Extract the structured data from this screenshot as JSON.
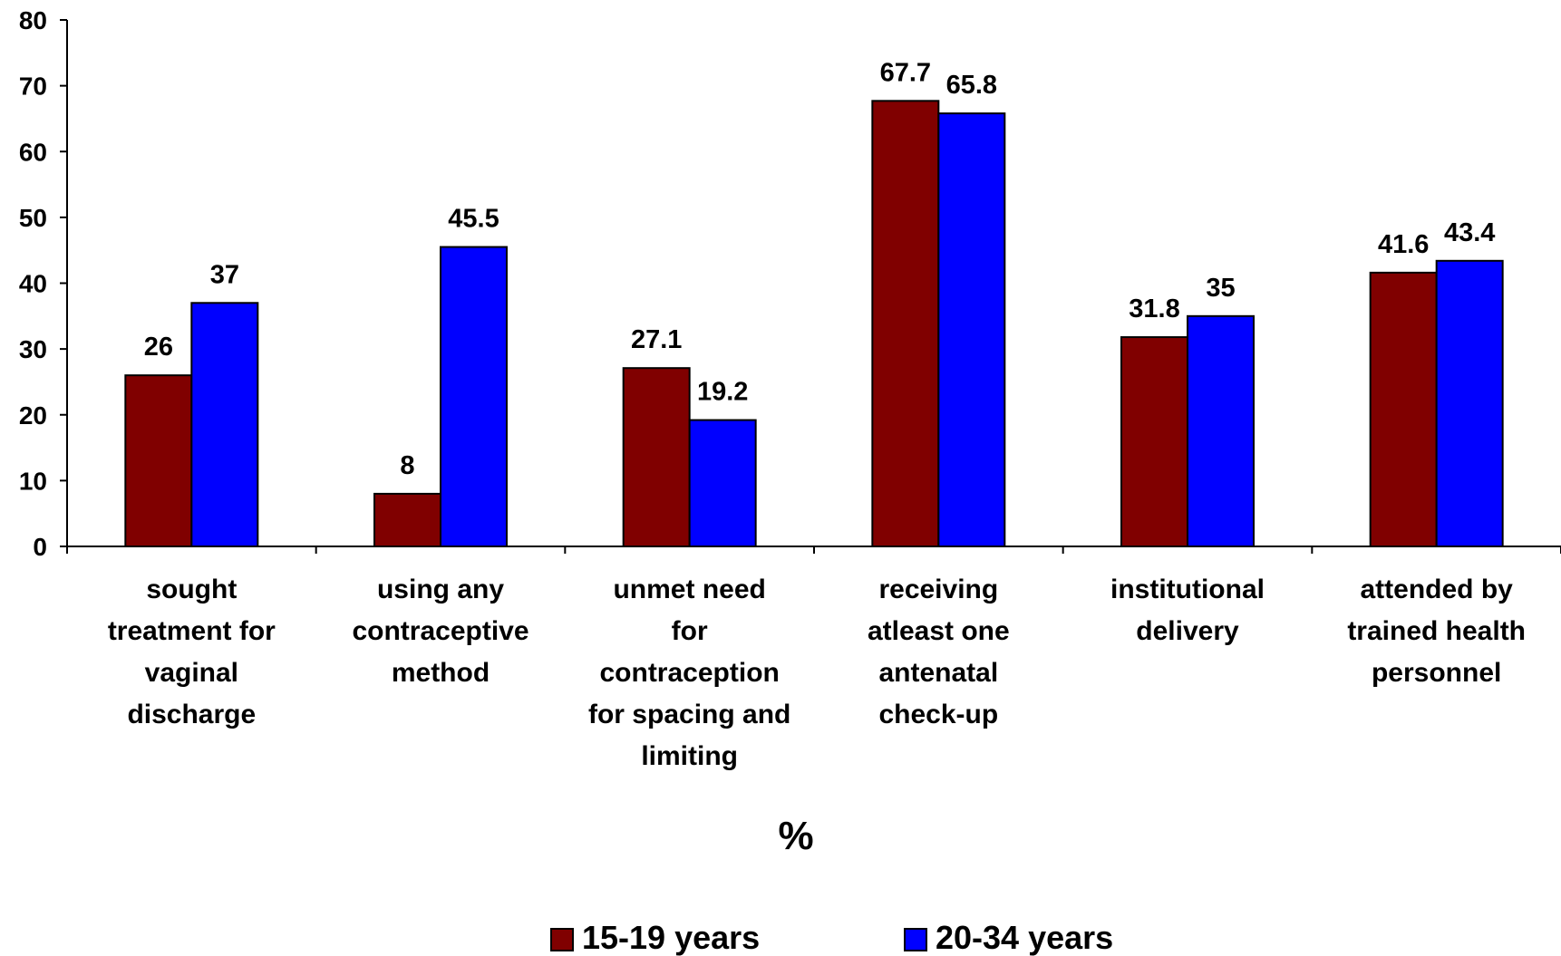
{
  "chart_data": {
    "type": "bar",
    "categories": [
      [
        "sought",
        "treatment for",
        "vaginal",
        "discharge"
      ],
      [
        "using any",
        "contraceptive",
        "method"
      ],
      [
        "unmet need",
        "for",
        "contraception",
        "for spacing and",
        "limiting"
      ],
      [
        "receiving",
        "atleast one",
        "antenatal",
        "check-up"
      ],
      [
        "institutional",
        "delivery"
      ],
      [
        "attended by",
        "trained health",
        "personnel"
      ]
    ],
    "series": [
      {
        "name": "15-19 years",
        "color": "#800000",
        "values": [
          26,
          8,
          27.1,
          67.7,
          31.8,
          41.6
        ],
        "labels": [
          "26",
          "8",
          "27.1",
          "67.7",
          "31.8",
          "41.6"
        ]
      },
      {
        "name": "20-34 years",
        "color": "#0000ff",
        "values": [
          37,
          45.5,
          19.2,
          65.8,
          35,
          43.4
        ],
        "labels": [
          "37",
          "45.5",
          "19.2",
          "65.8",
          "35",
          "43.4"
        ]
      }
    ],
    "ylim": [
      0,
      80
    ],
    "yticks": [
      "0",
      "10",
      "20",
      "30",
      "40",
      "50",
      "60",
      "70",
      "80"
    ],
    "xlabel": "%",
    "ylabel": "",
    "title": "",
    "legend_position": "bottom",
    "grid": false
  }
}
